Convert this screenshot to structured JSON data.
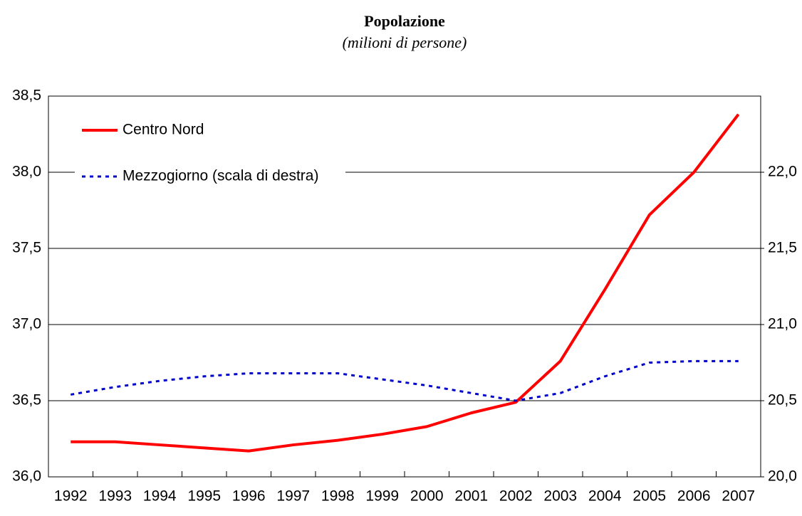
{
  "chart_data": {
    "type": "line",
    "title": "Popolazione",
    "subtitle": "(milioni di persone)",
    "categories": [
      "1992",
      "1993",
      "1994",
      "1995",
      "1996",
      "1997",
      "1998",
      "1999",
      "2000",
      "2001",
      "2002",
      "2003",
      "2004",
      "2005",
      "2006",
      "2007"
    ],
    "series": [
      {
        "name": "Centro Nord",
        "color": "#ff0000",
        "style": "solid",
        "values": [
          36.23,
          36.23,
          36.21,
          36.19,
          36.17,
          36.21,
          36.24,
          36.28,
          36.33,
          36.42,
          36.49,
          36.76,
          37.23,
          37.72,
          38.0,
          38.38
        ]
      },
      {
        "name": "Mezzogiorno (scala di destra)",
        "color": "#0000cc",
        "style": "dotted",
        "axis": "y2",
        "values": [
          20.54,
          20.59,
          20.63,
          20.66,
          20.68,
          20.68,
          20.68,
          20.64,
          20.6,
          20.55,
          20.5,
          20.55,
          20.66,
          20.75,
          20.76,
          20.76
        ]
      }
    ],
    "ylim": [
      36,
      38.5
    ],
    "yticks": [
      {
        "value": 36,
        "label": "36,0"
      },
      {
        "value": 36.5,
        "label": "36,5"
      },
      {
        "value": 37,
        "label": "37,0"
      },
      {
        "value": 37.5,
        "label": "37,5"
      },
      {
        "value": 38,
        "label": "38,0"
      },
      {
        "value": 38.5,
        "label": "38,5"
      }
    ],
    "y2lim": [
      20,
      22.5
    ],
    "y2ticks": [
      {
        "value": 20,
        "label": "20,0"
      },
      {
        "value": 20.5,
        "label": "20,5"
      },
      {
        "value": 21,
        "label": "21,0"
      },
      {
        "value": 21.5,
        "label": "21,5"
      },
      {
        "value": 22,
        "label": "22,0"
      }
    ],
    "grid": true,
    "legend": "upper left"
  }
}
